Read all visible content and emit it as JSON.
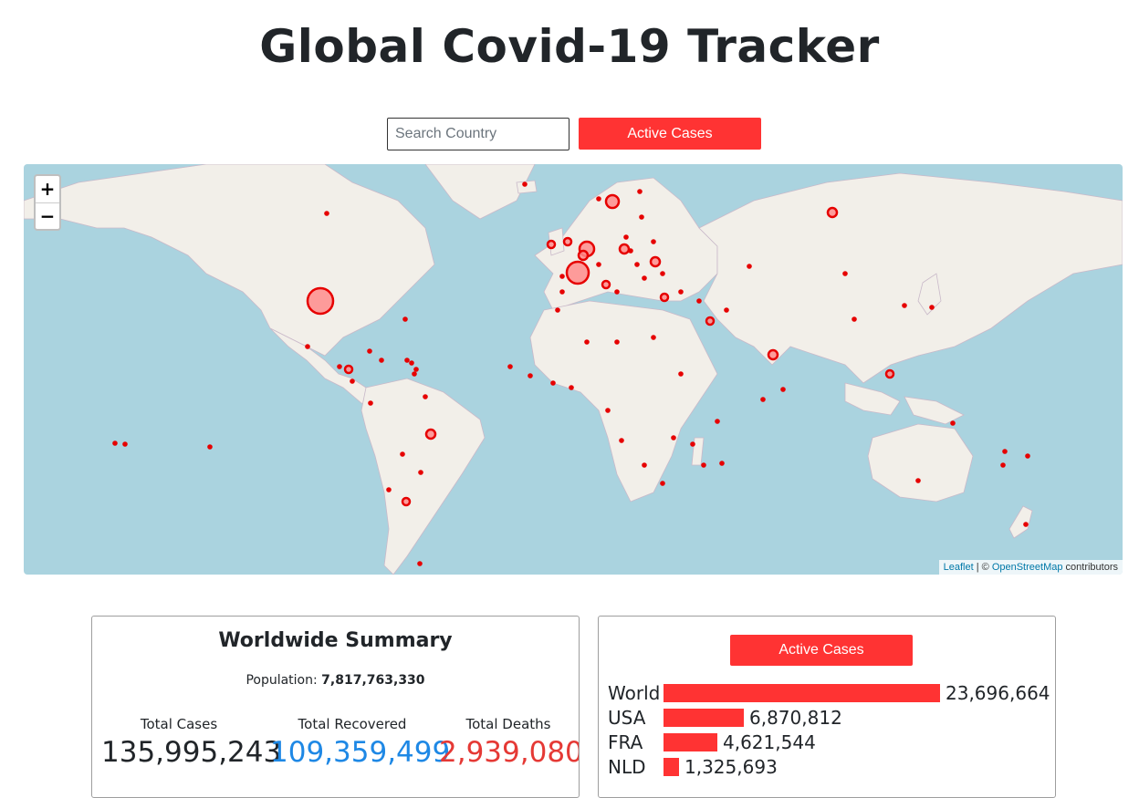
{
  "header": {
    "title": "Global Covid-19 Tracker"
  },
  "search": {
    "placeholder": "Search Country",
    "value": ""
  },
  "controls": {
    "active_cases_label": "Active Cases"
  },
  "map": {
    "zoom_in": "+",
    "zoom_out": "−",
    "attribution": {
      "leaflet": "Leaflet",
      "separator": " | © ",
      "osm": "OpenStreetMap",
      "suffix": " contributors"
    },
    "colors": {
      "water": "#aad3df",
      "land": "#f2efe9",
      "marker_fill": "#ff8c8c",
      "marker_stroke": "#e60000"
    }
  },
  "summary": {
    "title": "Worldwide Summary",
    "population_label": "Population:",
    "population_value": "7,817,763,330",
    "stats": [
      {
        "label": "Total Cases",
        "value": "135,995,243",
        "color": "#212529"
      },
      {
        "label": "Total Recovered",
        "value": "109,359,499",
        "color": "#1e88e5"
      },
      {
        "label": "Total Deaths",
        "value": "2,939,080",
        "color": "#e53935"
      }
    ]
  },
  "active": {
    "button_label": "Active Cases",
    "rows": [
      {
        "code": "World",
        "value": 23696664,
        "label": "23,696,664"
      },
      {
        "code": "USA",
        "value": 6870812,
        "label": "6,870,812"
      },
      {
        "code": "FRA",
        "value": 4621544,
        "label": "4,621,544"
      },
      {
        "code": "NLD",
        "value": 1325693,
        "label": "1,325,693"
      }
    ]
  }
}
